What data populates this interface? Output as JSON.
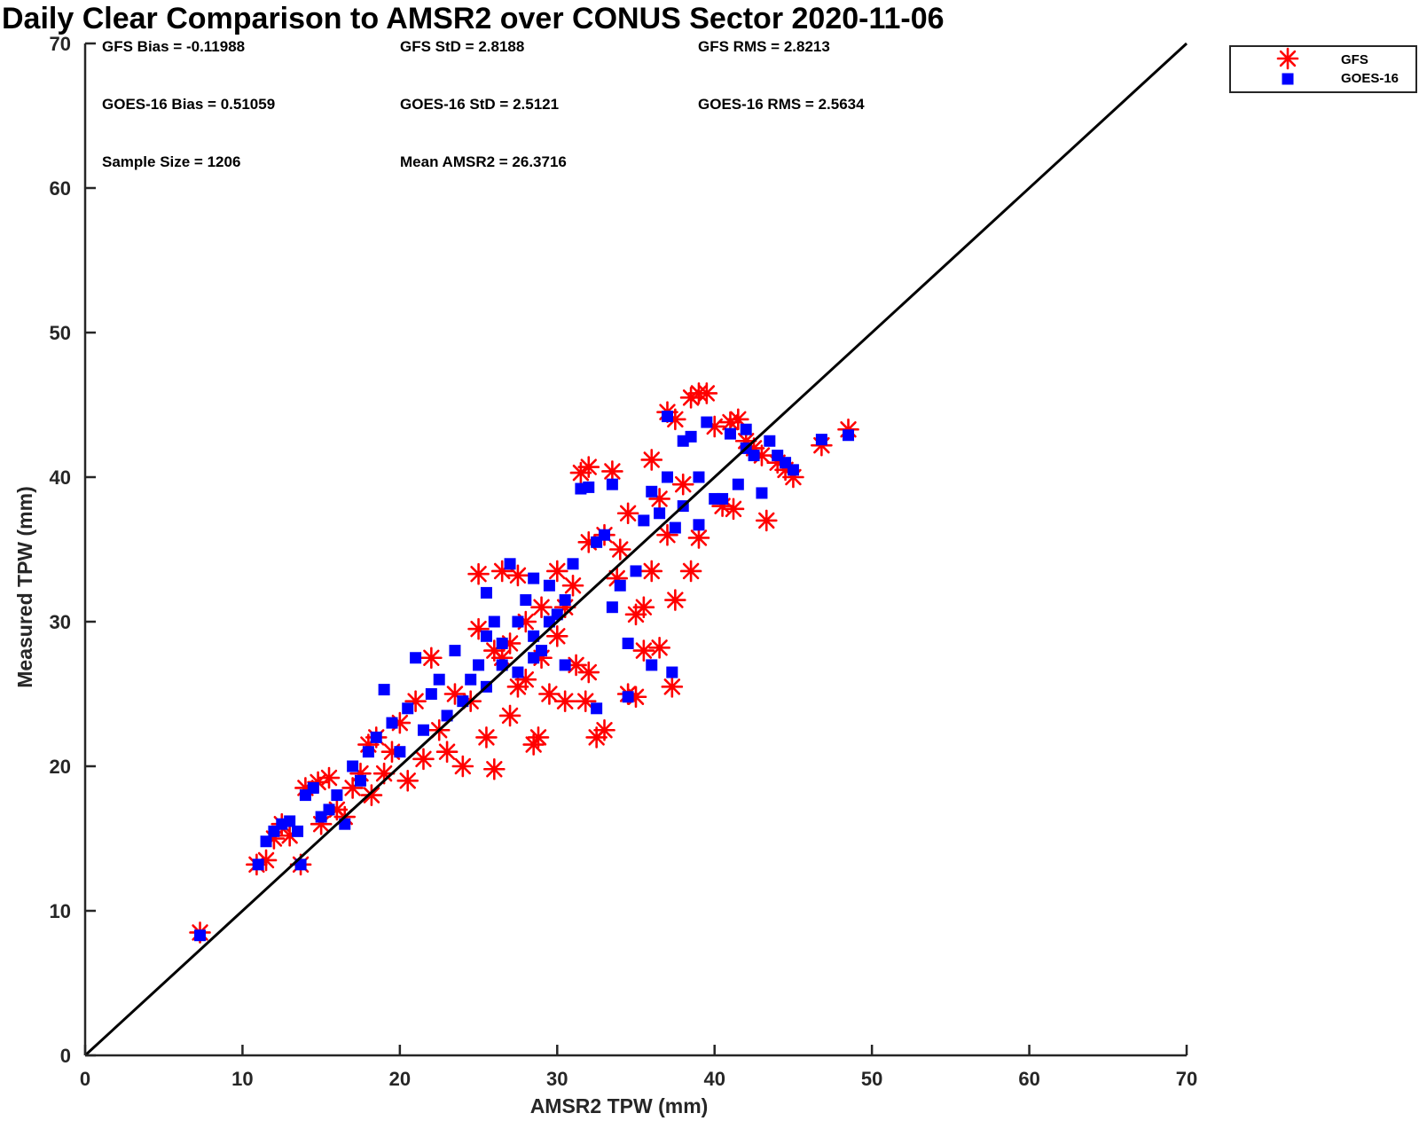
{
  "chart_data": {
    "type": "scatter",
    "title": "Daily Clear Comparison to AMSR2 over CONUS Sector 2020-11-06",
    "xlabel": "AMSR2 TPW (mm)",
    "ylabel": "Measured TPW (mm)",
    "xlim": [
      0,
      70
    ],
    "ylim": [
      0,
      70
    ],
    "xticks": [
      "0",
      "10",
      "20",
      "30",
      "40",
      "50",
      "60",
      "70"
    ],
    "yticks": [
      "0",
      "10",
      "20",
      "30",
      "40",
      "50",
      "60",
      "70"
    ],
    "grid": false,
    "legend_position": "outside top-right",
    "reference_line": {
      "x": [
        0,
        70
      ],
      "y": [
        0,
        70
      ],
      "color": "#000000"
    },
    "stats": [
      {
        "text": "GFS Bias = -0.11988"
      },
      {
        "text": "GFS StD = 2.8188"
      },
      {
        "text": "GFS RMS = 2.8213"
      },
      {
        "text": "GOES-16 Bias = 0.51059"
      },
      {
        "text": "GOES-16 StD = 2.5121"
      },
      {
        "text": "GOES-16 RMS = 2.5634"
      },
      {
        "text": "Sample Size = 1206"
      },
      {
        "text": "Mean AMSR2 = 26.3716"
      }
    ],
    "series": [
      {
        "name": "GFS",
        "marker": "asterisk",
        "color": "#ff0000",
        "points": [
          [
            7.3,
            8.5
          ],
          [
            10.9,
            13.2
          ],
          [
            11.5,
            13.5
          ],
          [
            12.0,
            15.0
          ],
          [
            12.5,
            16.0
          ],
          [
            13.0,
            15.2
          ],
          [
            13.7,
            13.2
          ],
          [
            14.0,
            18.5
          ],
          [
            14.8,
            18.9
          ],
          [
            15.0,
            16.0
          ],
          [
            15.5,
            19.2
          ],
          [
            16.0,
            17.0
          ],
          [
            16.5,
            16.5
          ],
          [
            17.0,
            18.5
          ],
          [
            17.5,
            19.5
          ],
          [
            18.0,
            21.5
          ],
          [
            18.2,
            18.0
          ],
          [
            18.5,
            22.0
          ],
          [
            19.0,
            19.5
          ],
          [
            19.5,
            21.0
          ],
          [
            20.0,
            23.0
          ],
          [
            20.5,
            19.0
          ],
          [
            21.0,
            24.5
          ],
          [
            21.5,
            20.5
          ],
          [
            22.0,
            27.5
          ],
          [
            22.5,
            22.5
          ],
          [
            23.0,
            21.0
          ],
          [
            23.5,
            25.0
          ],
          [
            24.0,
            20.0
          ],
          [
            24.5,
            24.5
          ],
          [
            25.0,
            29.5
          ],
          [
            25.5,
            22.0
          ],
          [
            25.0,
            33.3
          ],
          [
            26.0,
            19.8
          ],
          [
            26.5,
            27.5
          ],
          [
            26.5,
            33.5
          ],
          [
            27.0,
            23.5
          ],
          [
            27.5,
            25.5
          ],
          [
            27.5,
            33.2
          ],
          [
            28.0,
            30.0
          ],
          [
            28.5,
            21.5
          ],
          [
            28.8,
            22.0
          ],
          [
            29.0,
            27.5
          ],
          [
            29.5,
            25.0
          ],
          [
            30.0,
            29.0
          ],
          [
            30.5,
            24.5
          ],
          [
            30.5,
            31.0
          ],
          [
            31.0,
            32.5
          ],
          [
            31.2,
            27.0
          ],
          [
            31.5,
            40.3
          ],
          [
            32.0,
            40.7
          ],
          [
            31.8,
            24.5
          ],
          [
            32.0,
            26.5
          ],
          [
            32.5,
            22.0
          ],
          [
            33.0,
            22.5
          ],
          [
            32.0,
            35.5
          ],
          [
            33.0,
            36.0
          ],
          [
            33.5,
            40.4
          ],
          [
            33.8,
            33.0
          ],
          [
            34.0,
            35.0
          ],
          [
            34.5,
            25.0
          ],
          [
            35.0,
            24.8
          ],
          [
            34.5,
            37.5
          ],
          [
            35.0,
            30.5
          ],
          [
            35.5,
            31.0
          ],
          [
            35.5,
            28.0
          ],
          [
            36.0,
            41.2
          ],
          [
            36.5,
            28.2
          ],
          [
            36.0,
            33.5
          ],
          [
            36.5,
            38.5
          ],
          [
            37.0,
            44.5
          ],
          [
            37.5,
            44.0
          ],
          [
            37.0,
            36.0
          ],
          [
            37.3,
            25.5
          ],
          [
            37.5,
            31.5
          ],
          [
            38.0,
            39.5
          ],
          [
            38.5,
            45.5
          ],
          [
            39.0,
            45.8
          ],
          [
            38.5,
            33.5
          ],
          [
            39.0,
            35.8
          ],
          [
            39.5,
            45.8
          ],
          [
            40.0,
            43.5
          ],
          [
            40.5,
            38.0
          ],
          [
            41.0,
            43.8
          ],
          [
            41.2,
            37.8
          ],
          [
            41.5,
            44.0
          ],
          [
            42.0,
            42.5
          ],
          [
            42.5,
            42.0
          ],
          [
            43.0,
            41.5
          ],
          [
            43.3,
            37.0
          ],
          [
            44.0,
            41.0
          ],
          [
            44.5,
            40.5
          ],
          [
            45.0,
            40.0
          ],
          [
            46.8,
            42.2
          ],
          [
            48.5,
            43.3
          ],
          [
            26.0,
            28.0
          ],
          [
            27.0,
            28.5
          ],
          [
            28.0,
            26.0
          ],
          [
            29.0,
            31.0
          ],
          [
            30.0,
            33.5
          ]
        ]
      },
      {
        "name": "GOES-16",
        "marker": "square",
        "color": "#0000ff",
        "points": [
          [
            7.3,
            8.3
          ],
          [
            11.0,
            13.2
          ],
          [
            11.5,
            14.8
          ],
          [
            12.0,
            15.5
          ],
          [
            12.5,
            16.0
          ],
          [
            13.0,
            16.2
          ],
          [
            13.5,
            15.5
          ],
          [
            13.7,
            13.2
          ],
          [
            14.0,
            18.0
          ],
          [
            14.5,
            18.5
          ],
          [
            15.0,
            16.5
          ],
          [
            15.5,
            17.0
          ],
          [
            16.0,
            18.0
          ],
          [
            16.5,
            16.0
          ],
          [
            17.0,
            20.0
          ],
          [
            17.5,
            19.0
          ],
          [
            18.0,
            21.0
          ],
          [
            18.5,
            22.0
          ],
          [
            19.0,
            25.3
          ],
          [
            19.5,
            23.0
          ],
          [
            20.0,
            21.0
          ],
          [
            20.5,
            24.0
          ],
          [
            21.0,
            27.5
          ],
          [
            21.5,
            22.5
          ],
          [
            22.0,
            25.0
          ],
          [
            22.5,
            26.0
          ],
          [
            23.0,
            23.5
          ],
          [
            23.5,
            28.0
          ],
          [
            24.0,
            24.5
          ],
          [
            24.5,
            26.0
          ],
          [
            25.0,
            27.0
          ],
          [
            25.5,
            25.5
          ],
          [
            25.5,
            32.0
          ],
          [
            26.0,
            30.0
          ],
          [
            26.5,
            28.5
          ],
          [
            27.0,
            34.0
          ],
          [
            27.5,
            26.5
          ],
          [
            28.0,
            31.5
          ],
          [
            28.5,
            29.0
          ],
          [
            28.5,
            33.0
          ],
          [
            29.0,
            28.0
          ],
          [
            29.5,
            32.5
          ],
          [
            30.0,
            30.5
          ],
          [
            30.5,
            27.0
          ],
          [
            31.0,
            34.0
          ],
          [
            31.5,
            39.2
          ],
          [
            32.0,
            39.3
          ],
          [
            32.5,
            35.5
          ],
          [
            32.5,
            24.0
          ],
          [
            33.0,
            36.0
          ],
          [
            33.5,
            39.5
          ],
          [
            33.5,
            31.0
          ],
          [
            34.0,
            32.5
          ],
          [
            34.5,
            28.5
          ],
          [
            35.0,
            33.5
          ],
          [
            34.5,
            24.8
          ],
          [
            35.5,
            37.0
          ],
          [
            36.0,
            39.0
          ],
          [
            36.0,
            27.0
          ],
          [
            36.5,
            37.5
          ],
          [
            37.0,
            44.2
          ],
          [
            37.0,
            40.0
          ],
          [
            37.3,
            26.5
          ],
          [
            37.5,
            36.5
          ],
          [
            38.0,
            42.5
          ],
          [
            38.0,
            38.0
          ],
          [
            38.5,
            42.8
          ],
          [
            39.0,
            36.7
          ],
          [
            39.0,
            40.0
          ],
          [
            39.5,
            43.8
          ],
          [
            40.0,
            38.5
          ],
          [
            40.5,
            38.5
          ],
          [
            41.0,
            43.0
          ],
          [
            41.5,
            39.5
          ],
          [
            42.0,
            42.0
          ],
          [
            42.0,
            43.3
          ],
          [
            42.5,
            41.5
          ],
          [
            43.0,
            38.9
          ],
          [
            43.5,
            42.5
          ],
          [
            44.0,
            41.5
          ],
          [
            44.5,
            41.0
          ],
          [
            45.0,
            40.5
          ],
          [
            46.8,
            42.6
          ],
          [
            48.5,
            42.9
          ],
          [
            25.5,
            29.0
          ],
          [
            26.5,
            27.0
          ],
          [
            27.5,
            30.0
          ],
          [
            28.5,
            27.5
          ],
          [
            29.5,
            30.0
          ],
          [
            30.5,
            31.5
          ]
        ]
      }
    ]
  }
}
